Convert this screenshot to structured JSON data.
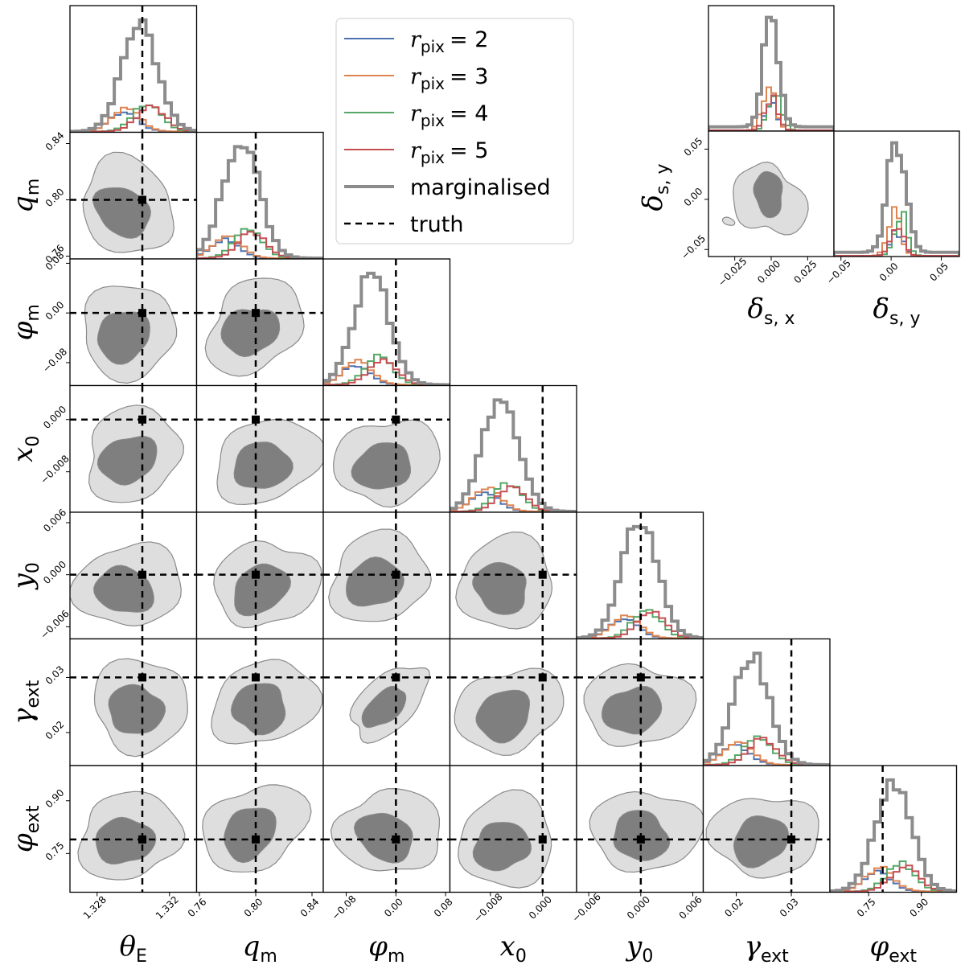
{
  "chart_data": {
    "type": "scatter",
    "subtype": "corner",
    "params": [
      {
        "key": "theta_E",
        "sym": "θ",
        "sub": "E",
        "range": [
          1.3265,
          1.3335
        ],
        "ticks": [
          1.328,
          1.332
        ],
        "tick_labels": [
          "1.328",
          "1.332"
        ],
        "truth": 1.3305,
        "y_ticks": null,
        "y_tick_labels": null
      },
      {
        "key": "q_m",
        "sym": "q",
        "sub": "m",
        "range": [
          0.758,
          0.848
        ],
        "ticks": [
          0.76,
          0.8,
          0.84
        ],
        "tick_labels": [
          "0.76",
          "0.80",
          "0.84"
        ],
        "truth": 0.8
      },
      {
        "key": "phi_m",
        "sym": "φ",
        "sub": "m",
        "range": [
          -0.117,
          0.087
        ],
        "ticks": [
          -0.08,
          0.0,
          0.08
        ],
        "tick_labels": [
          "−0.08",
          "0.00",
          "0.08"
        ],
        "truth": 0.0
      },
      {
        "key": "x_0",
        "sym": "x",
        "sub": "0",
        "range": [
          -0.0142,
          0.0052
        ],
        "ticks": [
          -0.008,
          0.0
        ],
        "tick_labels": [
          "−0.008",
          "0.000"
        ],
        "truth": 0.0
      },
      {
        "key": "y_0",
        "sym": "y",
        "sub": "0",
        "range": [
          -0.0074,
          0.0072
        ],
        "ticks": [
          -0.006,
          0.0,
          0.006
        ],
        "tick_labels": [
          "−0.006",
          "0.000",
          "0.006"
        ],
        "truth": 0.0
      },
      {
        "key": "gamma_ext",
        "sym": "γ",
        "sub": "ext",
        "range": [
          0.014,
          0.037
        ],
        "ticks": [
          0.02,
          0.03
        ],
        "tick_labels": [
          "0.02",
          "0.03"
        ],
        "truth": 0.03
      },
      {
        "key": "phi_ext",
        "sym": "φ",
        "sub": "ext",
        "range": [
          0.64,
          1.0
        ],
        "ticks": [
          0.75,
          0.9
        ],
        "tick_labels": [
          "0.75",
          "0.90"
        ],
        "truth": 0.79
      }
    ],
    "source_params": [
      {
        "key": "delta_sx",
        "sym": "δ",
        "sub": "s, x",
        "range": [
          -0.043,
          0.043
        ],
        "ticks": [
          -0.025,
          0.0,
          0.025
        ],
        "tick_labels": [
          "−0.025",
          "0.000",
          "0.025"
        ]
      },
      {
        "key": "delta_sy",
        "sym": "δ",
        "sub": "s, y",
        "range": [
          -0.057,
          0.068
        ],
        "ticks": [
          -0.05,
          0.0,
          0.05
        ],
        "tick_labels": [
          "−0.05",
          "0.00",
          "0.05"
        ]
      }
    ],
    "series": [
      {
        "name_sym": "r",
        "name_sub": "pix",
        "name_value": "= 2",
        "color": "#4c72b0",
        "width": 2,
        "dash": ""
      },
      {
        "name_sym": "r",
        "name_sub": "pix",
        "name_value": "= 3",
        "color": "#dd8452",
        "width": 2,
        "dash": ""
      },
      {
        "name_sym": "r",
        "name_sub": "pix",
        "name_value": "= 4",
        "color": "#55a868",
        "width": 2,
        "dash": ""
      },
      {
        "name_sym": "r",
        "name_sub": "pix",
        "name_value": "= 5",
        "color": "#c44e52",
        "width": 2,
        "dash": ""
      },
      {
        "name": "marginalised",
        "color": "#8c8c8c",
        "width": 4,
        "dash": ""
      },
      {
        "name": "truth",
        "color": "#000000",
        "width": 2.5,
        "dash": "8,6"
      }
    ],
    "marginal_peak_fraction": {
      "r_pix_2": 0.18,
      "r_pix_3": 0.22,
      "r_pix_4": 0.26,
      "r_pix_5": 0.24,
      "marginalised": 1.0
    },
    "contour_levels": [
      "1-sigma (dark grey)",
      "2-sigma (light grey)"
    ],
    "legend_position": "top-center",
    "grid": false
  },
  "colors": {
    "dark_contour": "#7f7f7f",
    "light_contour": "#dedede",
    "contour_edge": "#8a8a8a",
    "truth": "#000000"
  }
}
